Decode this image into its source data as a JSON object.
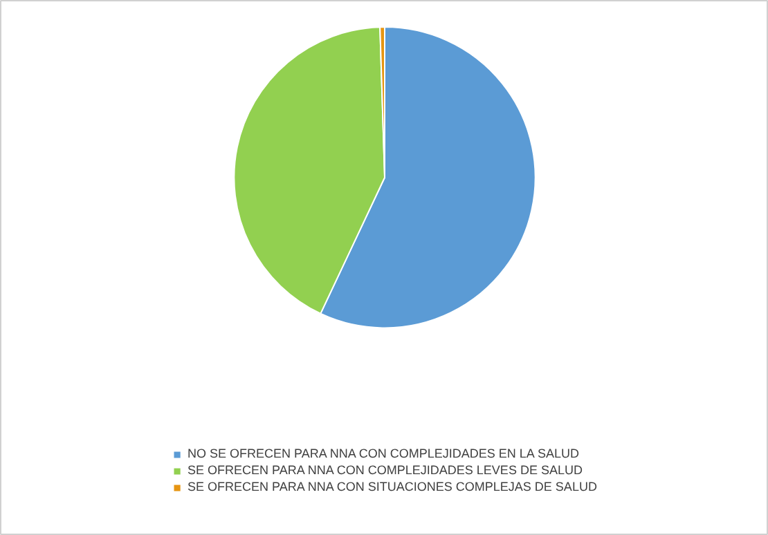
{
  "chart_data": {
    "type": "pie",
    "categories": [
      "NO SE OFRECEN PARA NNA CON COMPLEJIDADES EN LA SALUD",
      "SE OFRECEN PARA NNA CON COMPLEJIDADES LEVES DE SALUD",
      "SE OFRECEN PARA NNA CON SITUACIONES COMPLEJAS DE SALUD"
    ],
    "values": [
      57,
      42.5,
      0.5
    ],
    "colors": [
      "#5b9bd5",
      "#92d050",
      "#e69512"
    ],
    "legend": "bottom"
  }
}
